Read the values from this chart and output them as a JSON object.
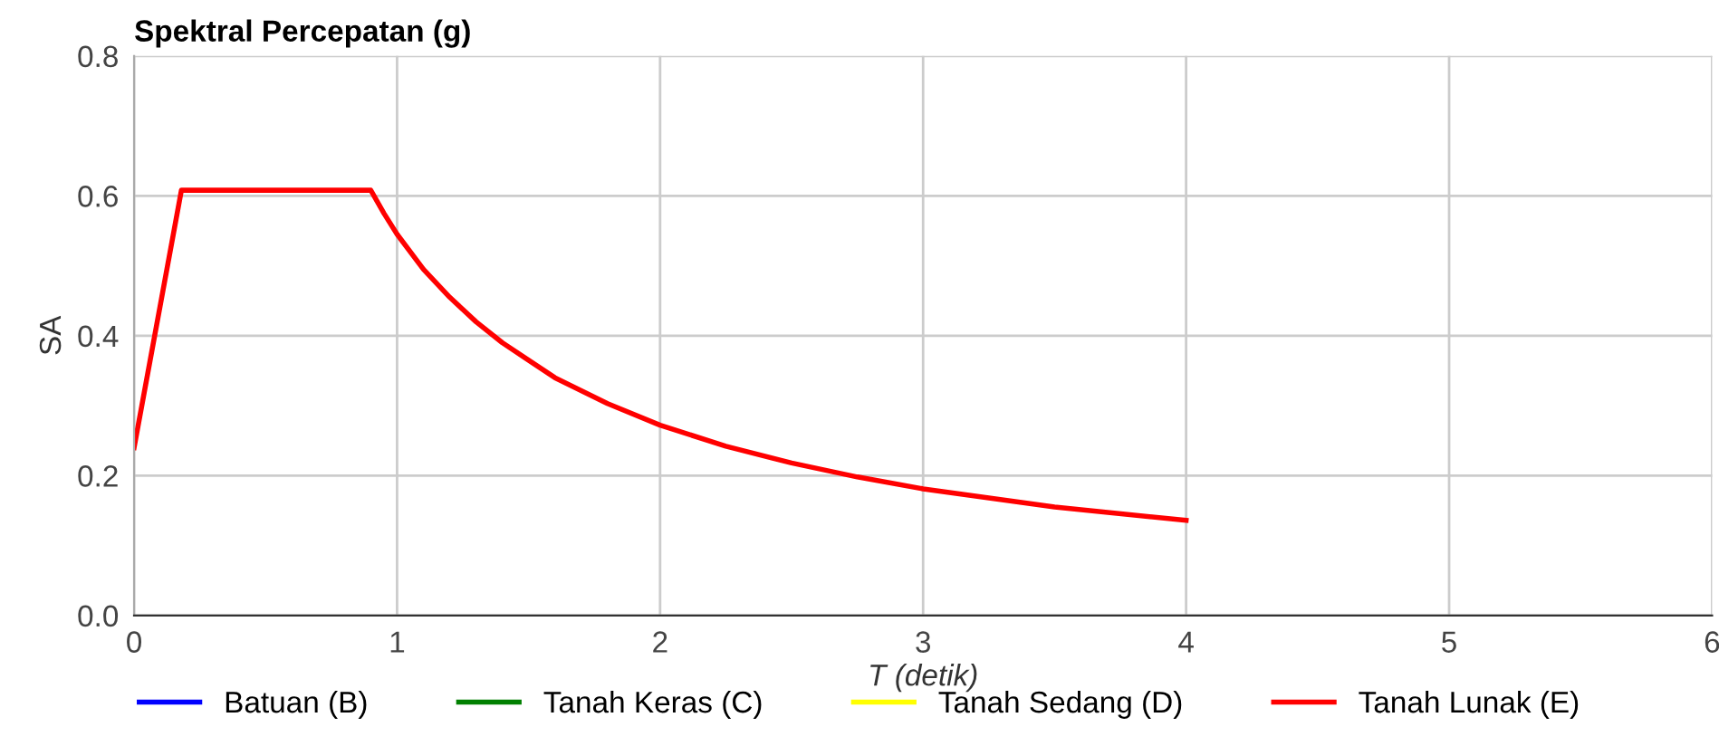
{
  "chart_data": {
    "type": "line",
    "title": "Spektral Percepatan (g)",
    "xlabel": "T (detik)",
    "ylabel": "SA",
    "xlim": [
      0,
      6
    ],
    "xticks": [
      0,
      1,
      2,
      3,
      4,
      5,
      6
    ],
    "ylim": [
      0,
      0.8
    ],
    "yticks": [
      {
        "value": 0,
        "label": "0.0"
      },
      {
        "value": 0.2,
        "label": "0.2"
      },
      {
        "value": 0.4,
        "label": "0.4"
      },
      {
        "value": 0.6,
        "label": "0.6"
      },
      {
        "value": 0.8,
        "label": "0.8"
      }
    ],
    "grid": true,
    "legend": "bottom",
    "marker": "none",
    "line_style": "solid",
    "series": [
      {
        "name": "Batuan (B)",
        "color": "#0000ff"
      },
      {
        "name": "Tanah Keras (C)",
        "color": "#008000"
      },
      {
        "name": "Tanah Sedang (D)",
        "color": "#ffff00"
      },
      {
        "name": "Tanah Lunak (E)",
        "color": "#ff0000",
        "x": [
          0,
          0.18,
          0.9,
          0.95,
          1.0,
          1.1,
          1.2,
          1.3,
          1.4,
          1.5,
          1.6,
          1.8,
          2.0,
          2.25,
          2.5,
          2.75,
          3.0,
          3.5,
          4.0
        ],
        "values": [
          0.24,
          0.608,
          0.608,
          0.575,
          0.545,
          0.495,
          0.455,
          0.42,
          0.39,
          0.365,
          0.34,
          0.303,
          0.272,
          0.242,
          0.218,
          0.198,
          0.181,
          0.155,
          0.136
        ]
      }
    ]
  }
}
